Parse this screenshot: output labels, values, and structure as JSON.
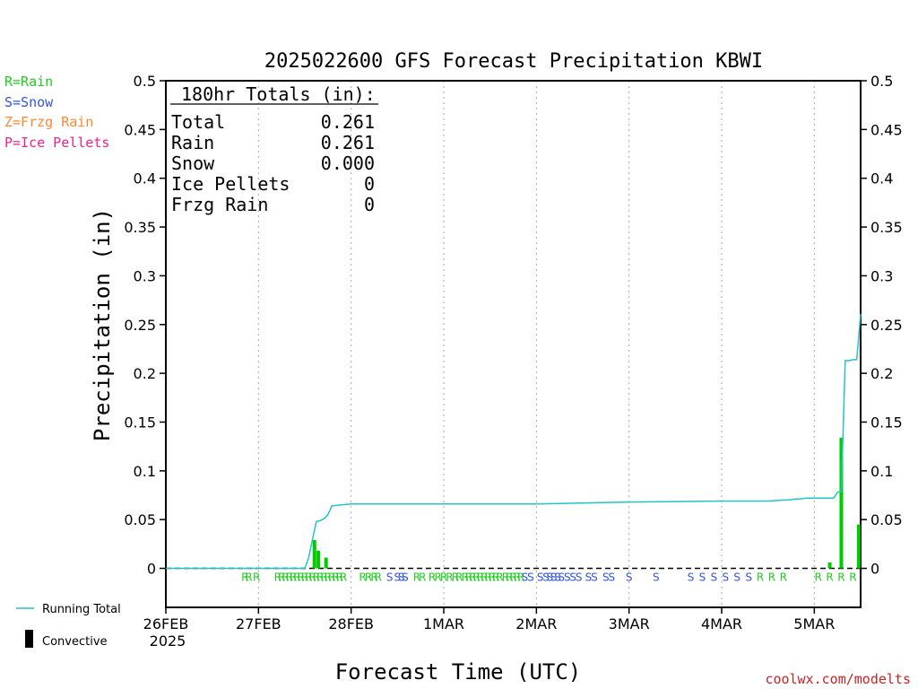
{
  "chart_data": {
    "type": "bar+line",
    "title": "2025022600 GFS Forecast Precipitation KBWI",
    "xlabel": "Forecast Time (UTC)",
    "ylabel": "Precipitation (in)",
    "ylim": [
      -0.04,
      0.5
    ],
    "yticks": [
      0,
      0.05,
      0.1,
      0.15,
      0.2,
      0.25,
      0.3,
      0.35,
      0.4,
      0.45,
      0.5
    ],
    "ytick_labels": [
      "0",
      "0.05",
      "0.1",
      "0.15",
      "0.2",
      "0.25",
      "0.3",
      "0.35",
      "0.4",
      "0.45",
      "0.5"
    ],
    "xlim_hours": [
      0,
      180
    ],
    "xticks": [
      {
        "hour": 0,
        "label": "26FEB",
        "sub": "2025"
      },
      {
        "hour": 24,
        "label": "27FEB",
        "sub": ""
      },
      {
        "hour": 48,
        "label": "28FEB",
        "sub": ""
      },
      {
        "hour": 72,
        "label": "1MAR",
        "sub": ""
      },
      {
        "hour": 96,
        "label": "2MAR",
        "sub": ""
      },
      {
        "hour": 120,
        "label": "3MAR",
        "sub": ""
      },
      {
        "hour": 144,
        "label": "4MAR",
        "sub": ""
      },
      {
        "hour": 168,
        "label": "5MAR",
        "sub": ""
      }
    ],
    "grid": "vertical-dotted",
    "running_total": {
      "name": "Running Total",
      "color": "#22c4c4",
      "hours": [
        0,
        36,
        37,
        38,
        39,
        40,
        41,
        42,
        43,
        45,
        48,
        60,
        66,
        78,
        84,
        90,
        96,
        120,
        144,
        150,
        156,
        160,
        161,
        163,
        164,
        166,
        167,
        168,
        170,
        171,
        172,
        173,
        174,
        175,
        176,
        177,
        178,
        179,
        180
      ],
      "values": [
        0,
        0,
        0.011,
        0.03,
        0.048,
        0.049,
        0.051,
        0.055,
        0.064,
        0.065,
        0.066,
        0.066,
        0.066,
        0.066,
        0.066,
        0.066,
        0.066,
        0.068,
        0.069,
        0.069,
        0.069,
        0.07,
        0.07,
        0.071,
        0.071,
        0.072,
        0.072,
        0.072,
        0.072,
        0.072,
        0.072,
        0.072,
        0.078,
        0.079,
        0.213,
        0.213,
        0.214,
        0.214,
        0.261
      ]
    },
    "convective": {
      "name": "Convective",
      "color": "#00cc00",
      "hours": [
        38.5,
        39.5,
        41.5,
        168,
        172,
        175,
        176.5,
        179.5
      ],
      "values": [
        0.029,
        0.018,
        0.011,
        0.0,
        0.006,
        0.134,
        0.0,
        0.045
      ]
    },
    "precip_type_markers": {
      "codes": {
        "R": "#22cc22",
        "S": "#3355dd",
        "Z": "#ff8833",
        "P": "#ee2288"
      },
      "items": [
        {
          "h": 20.5,
          "c": "R"
        },
        {
          "h": 21.5,
          "c": "R"
        },
        {
          "h": 23.5,
          "c": "R"
        },
        {
          "h": 29,
          "c": "R"
        },
        {
          "h": 30,
          "c": "R"
        },
        {
          "h": 31,
          "c": "R"
        },
        {
          "h": 32,
          "c": "R"
        },
        {
          "h": 33,
          "c": "R"
        },
        {
          "h": 34,
          "c": "R"
        },
        {
          "h": 35,
          "c": "R"
        },
        {
          "h": 36,
          "c": "R"
        },
        {
          "h": 37,
          "c": "R"
        },
        {
          "h": 38,
          "c": "R"
        },
        {
          "h": 39,
          "c": "R"
        },
        {
          "h": 40,
          "c": "R"
        },
        {
          "h": 41,
          "c": "R"
        },
        {
          "h": 42,
          "c": "R"
        },
        {
          "h": 43,
          "c": "R"
        },
        {
          "h": 44,
          "c": "R"
        },
        {
          "h": 45,
          "c": "R"
        },
        {
          "h": 46,
          "c": "R"
        },
        {
          "h": 51,
          "c": "R"
        },
        {
          "h": 52.5,
          "c": "R"
        },
        {
          "h": 54,
          "c": "R"
        },
        {
          "h": 55,
          "c": "R"
        },
        {
          "h": 58,
          "c": "S"
        },
        {
          "h": 60,
          "c": "S"
        },
        {
          "h": 61,
          "c": "S"
        },
        {
          "h": 62,
          "c": "S"
        },
        {
          "h": 65,
          "c": "R"
        },
        {
          "h": 66.5,
          "c": "R"
        },
        {
          "h": 69,
          "c": "R"
        },
        {
          "h": 70.5,
          "c": "R"
        },
        {
          "h": 72,
          "c": "R"
        },
        {
          "h": 73.5,
          "c": "R"
        },
        {
          "h": 75,
          "c": "R"
        },
        {
          "h": 76,
          "c": "R"
        },
        {
          "h": 77.5,
          "c": "R"
        },
        {
          "h": 78.5,
          "c": "R"
        },
        {
          "h": 79.5,
          "c": "R"
        },
        {
          "h": 80.5,
          "c": "R"
        },
        {
          "h": 81.5,
          "c": "R"
        },
        {
          "h": 82.5,
          "c": "R"
        },
        {
          "h": 83.5,
          "c": "R"
        },
        {
          "h": 84.5,
          "c": "R"
        },
        {
          "h": 85.5,
          "c": "R"
        },
        {
          "h": 86.5,
          "c": "R"
        },
        {
          "h": 88,
          "c": "R"
        },
        {
          "h": 89,
          "c": "R"
        },
        {
          "h": 90,
          "c": "R"
        },
        {
          "h": 91,
          "c": "R"
        },
        {
          "h": 92,
          "c": "R"
        },
        {
          "h": 93,
          "c": "S"
        },
        {
          "h": 94.5,
          "c": "S"
        },
        {
          "h": 97,
          "c": "S"
        },
        {
          "h": 98.5,
          "c": "S"
        },
        {
          "h": 99.5,
          "c": "S"
        },
        {
          "h": 100.5,
          "c": "S"
        },
        {
          "h": 101.5,
          "c": "S"
        },
        {
          "h": 102.5,
          "c": "S"
        },
        {
          "h": 104,
          "c": "S"
        },
        {
          "h": 105.5,
          "c": "S"
        },
        {
          "h": 107,
          "c": "S"
        },
        {
          "h": 109.5,
          "c": "S"
        },
        {
          "h": 111,
          "c": "S"
        },
        {
          "h": 114,
          "c": "S"
        },
        {
          "h": 115.5,
          "c": "S"
        },
        {
          "h": 120,
          "c": "S"
        },
        {
          "h": 127,
          "c": "S"
        },
        {
          "h": 136,
          "c": "S"
        },
        {
          "h": 139,
          "c": "S"
        },
        {
          "h": 142,
          "c": "S"
        },
        {
          "h": 145,
          "c": "S"
        },
        {
          "h": 148,
          "c": "S"
        },
        {
          "h": 151,
          "c": "S"
        },
        {
          "h": 154,
          "c": "R"
        },
        {
          "h": 157,
          "c": "R"
        },
        {
          "h": 160,
          "c": "R"
        },
        {
          "h": 169,
          "c": "R"
        },
        {
          "h": 172,
          "c": "R"
        },
        {
          "h": 175,
          "c": "R"
        },
        {
          "h": 178,
          "c": "R"
        }
      ]
    }
  },
  "legend": {
    "ptype": [
      {
        "text": "R=Rain",
        "color": "#22cc22"
      },
      {
        "text": "S=Snow",
        "color": "#3355dd"
      },
      {
        "text": "Z=Frzg Rain",
        "color": "#ff8833"
      },
      {
        "text": "P=Ice Pellets",
        "color": "#ee2288"
      }
    ],
    "running_total_label": "Running Total",
    "convective_label": "Convective"
  },
  "totals": {
    "header": "180hr Totals (in):",
    "rows": [
      {
        "label": "Total",
        "value": "0.261"
      },
      {
        "label": "Rain",
        "value": "0.261"
      },
      {
        "label": "Snow",
        "value": "0.000"
      },
      {
        "label": "Ice Pellets",
        "value": "0"
      },
      {
        "label": "Frzg Rain",
        "value": "0"
      }
    ]
  },
  "credit": "coolwx.com/modelts"
}
